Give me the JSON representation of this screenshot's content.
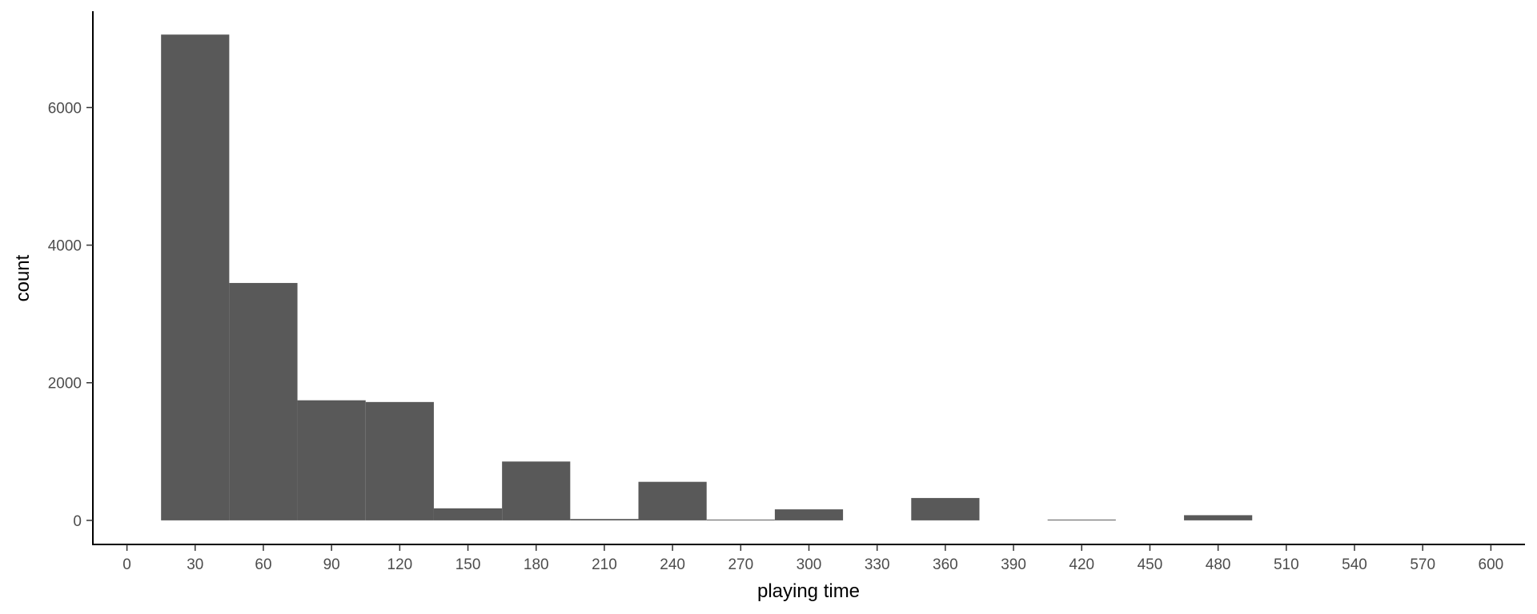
{
  "chart_data": {
    "type": "bar",
    "title": "",
    "xlabel": "playing time",
    "ylabel": "count",
    "xlim": [
      -15,
      615
    ],
    "ylim": [
      -350,
      7400
    ],
    "bin_width": 30,
    "x_ticks": [
      0,
      30,
      60,
      90,
      120,
      150,
      180,
      210,
      240,
      270,
      300,
      330,
      360,
      390,
      420,
      450,
      480,
      510,
      540,
      570,
      600
    ],
    "y_ticks": [
      0,
      2000,
      4000,
      6000
    ],
    "bins": [
      {
        "center": 30,
        "count": 7060
      },
      {
        "center": 60,
        "count": 3450
      },
      {
        "center": 90,
        "count": 1745
      },
      {
        "center": 120,
        "count": 1720
      },
      {
        "center": 150,
        "count": 175
      },
      {
        "center": 180,
        "count": 855
      },
      {
        "center": 210,
        "count": 20
      },
      {
        "center": 240,
        "count": 560
      },
      {
        "center": 270,
        "count": 10
      },
      {
        "center": 300,
        "count": 160
      },
      {
        "center": 330,
        "count": 0
      },
      {
        "center": 360,
        "count": 325
      },
      {
        "center": 390,
        "count": 0
      },
      {
        "center": 420,
        "count": 8
      },
      {
        "center": 450,
        "count": 0
      },
      {
        "center": 480,
        "count": 75
      }
    ],
    "bar_color": "#595959",
    "grid": false,
    "legend": "none"
  }
}
